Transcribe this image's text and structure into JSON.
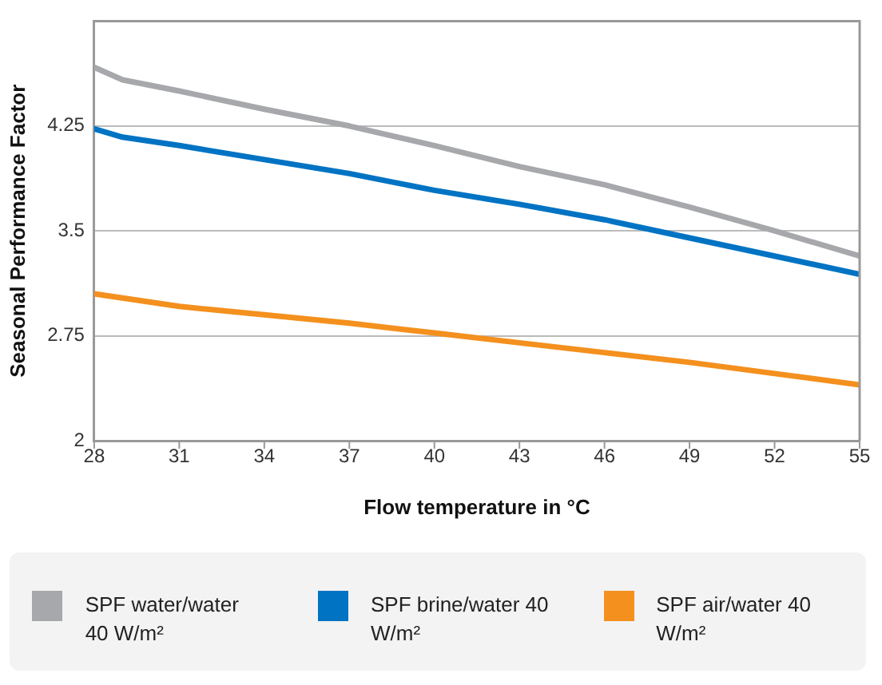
{
  "chart_data": {
    "type": "line",
    "xlabel": "Flow temperature in °C",
    "ylabel": "Seasonal Performance Factor",
    "x": [
      28,
      29,
      31,
      34,
      37,
      40,
      43,
      46,
      49,
      52,
      55
    ],
    "series": [
      {
        "name": "SPF water/water 40 W/m²",
        "color": "#a7a8ab",
        "values": [
          4.67,
          4.58,
          4.5,
          4.37,
          4.25,
          4.11,
          3.96,
          3.83,
          3.67,
          3.5,
          3.32
        ]
      },
      {
        "name": "SPF brine/water 40 W/m²",
        "color": "#0073c3",
        "values": [
          4.23,
          4.17,
          4.11,
          4.01,
          3.91,
          3.79,
          3.69,
          3.58,
          3.45,
          3.32,
          3.19
        ]
      },
      {
        "name": "SPF air/water 40 W/m²",
        "color": "#f4901e",
        "values": [
          3.05,
          3.02,
          2.96,
          2.9,
          2.84,
          2.77,
          2.7,
          2.63,
          2.56,
          2.48,
          2.4
        ]
      }
    ],
    "xlim": [
      28,
      55
    ],
    "xticks": [
      28,
      31,
      34,
      37,
      40,
      43,
      46,
      49,
      52,
      55
    ],
    "ylim": [
      2,
      5
    ],
    "yticks": [
      2,
      2.75,
      3.5,
      4.25
    ],
    "grid": "y",
    "legend": "bottom",
    "marker": "none",
    "line_style": "solid"
  }
}
